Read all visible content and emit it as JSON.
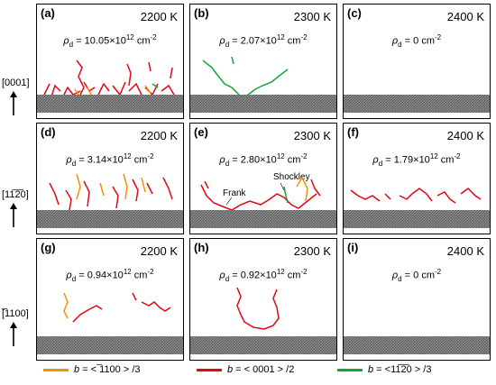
{
  "panels": [
    {
      "id": "a",
      "label": "(a)",
      "temp": "2200 K",
      "rho_val": "10.05×10",
      "rho_exp": "12",
      "rho_unit": "cm",
      "rho_unit_exp": "-2"
    },
    {
      "id": "b",
      "label": "(b)",
      "temp": "2300 K",
      "rho_val": "2.07×10",
      "rho_exp": "12",
      "rho_unit": "cm",
      "rho_unit_exp": "-2"
    },
    {
      "id": "c",
      "label": "(c)",
      "temp": "2400 K",
      "rho_val": "0",
      "rho_exp": "",
      "rho_unit": "cm",
      "rho_unit_exp": "-2"
    },
    {
      "id": "d",
      "label": "(d)",
      "temp": "2200 K",
      "rho_val": "3.14×10",
      "rho_exp": "12",
      "rho_unit": "cm",
      "rho_unit_exp": "-2"
    },
    {
      "id": "e",
      "label": "(e)",
      "temp": "2300 K",
      "rho_val": "2.80×10",
      "rho_exp": "12",
      "rho_unit": "cm",
      "rho_unit_exp": "-2"
    },
    {
      "id": "f",
      "label": "(f)",
      "temp": "2400 K",
      "rho_val": "1.79×10",
      "rho_exp": "12",
      "rho_unit": "cm",
      "rho_unit_exp": "-2"
    },
    {
      "id": "g",
      "label": "(g)",
      "temp": "2200 K",
      "rho_val": "0.94×10",
      "rho_exp": "12",
      "rho_unit": "cm",
      "rho_unit_exp": "-2"
    },
    {
      "id": "h",
      "label": "(h)",
      "temp": "2300 K",
      "rho_val": "0.92×10",
      "rho_exp": "12",
      "rho_unit": "cm",
      "rho_unit_exp": "-2"
    },
    {
      "id": "i",
      "label": "(i)",
      "temp": "2400 K",
      "rho_val": "0",
      "rho_exp": "",
      "rho_unit": "cm",
      "rho_unit_exp": "-2"
    }
  ],
  "rho_symbol": "ρ",
  "rho_sub": "d",
  "rho_eq": " = ",
  "axes": [
    "[0001]",
    "[11̅2̅0]",
    "[̅1100]"
  ],
  "annotations": {
    "frank": "Frank",
    "shockley": "Shockley"
  },
  "legend": [
    {
      "b": "b",
      "text": " = < ̅1100 > /3",
      "color": "#f39200"
    },
    {
      "b": "b",
      "text": " = < 0001 > /2",
      "color": "#e30613"
    },
    {
      "b": "b",
      "text": " = <11̅2̅0 > /3",
      "color": "#13a538"
    }
  ],
  "colors": {
    "orange": "#f39200",
    "red": "#e30613",
    "green": "#13a538",
    "slab": "#555555"
  }
}
